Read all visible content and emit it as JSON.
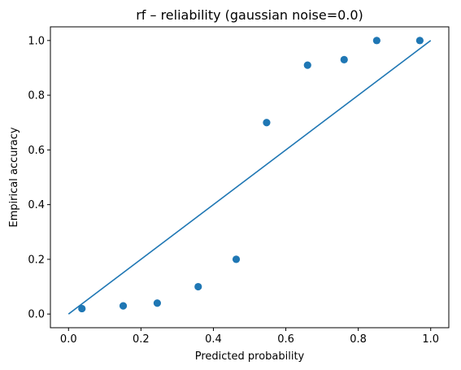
{
  "chart_data": {
    "type": "scatter",
    "title": "rf – reliability (gaussian noise=0.0)",
    "xlabel": "Predicted probability",
    "ylabel": "Empirical accuracy",
    "xlim": [
      -0.05,
      1.05
    ],
    "ylim": [
      -0.05,
      1.05
    ],
    "xticks": [
      0.0,
      0.2,
      0.4,
      0.6,
      0.8,
      1.0
    ],
    "yticks": [
      0.0,
      0.2,
      0.4,
      0.6,
      0.8,
      1.0
    ],
    "xtick_labels": [
      "0.0",
      "0.2",
      "0.4",
      "0.6",
      "0.8",
      "1.0"
    ],
    "ytick_labels": [
      "0.0",
      "0.2",
      "0.4",
      "0.6",
      "0.8",
      "1.0"
    ],
    "grid": false,
    "color": "#1f77b4",
    "points": [
      {
        "x": 0.037,
        "y": 0.02
      },
      {
        "x": 0.151,
        "y": 0.03
      },
      {
        "x": 0.245,
        "y": 0.04
      },
      {
        "x": 0.358,
        "y": 0.1
      },
      {
        "x": 0.463,
        "y": 0.2
      },
      {
        "x": 0.547,
        "y": 0.7
      },
      {
        "x": 0.66,
        "y": 0.91
      },
      {
        "x": 0.761,
        "y": 0.93
      },
      {
        "x": 0.851,
        "y": 1.0
      },
      {
        "x": 0.97,
        "y": 1.0
      }
    ],
    "reference_line": [
      {
        "x": 0.0,
        "y": 0.0
      },
      {
        "x": 1.0,
        "y": 1.0
      }
    ]
  }
}
